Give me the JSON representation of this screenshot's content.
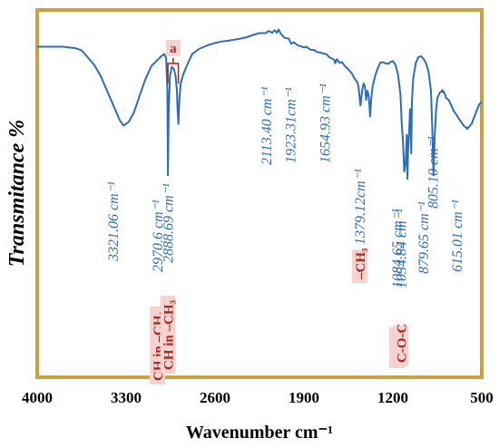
{
  "chart_data": {
    "type": "line",
    "title": "",
    "xlabel": "Wavenumber cm⁻¹",
    "ylabel": "Transmitance %",
    "xlim": [
      4000,
      500
    ],
    "ylim": [
      0,
      100
    ],
    "x_reversed": true,
    "grid": false,
    "legend": "none",
    "x_ticks": [
      "4000",
      "3300",
      "2600",
      "1900",
      "1200",
      "500"
    ],
    "colors": {
      "line": "#2e6db4",
      "frame": "#c8a23c",
      "group_text": "#a52a1a",
      "group_box": "#f6d3d0"
    },
    "series": [
      {
        "x": [
          4000,
          3900,
          3800,
          3700,
          3650,
          3600,
          3550,
          3500,
          3450,
          3400,
          3350,
          3321,
          3280,
          3240,
          3200,
          3150,
          3100,
          3050,
          3020,
          3000,
          2985,
          2975,
          2970.6,
          2965,
          2955,
          2940,
          2925,
          2910,
          2900,
          2895,
          2888.7,
          2880,
          2870,
          2850,
          2820,
          2780,
          2720,
          2650,
          2600,
          2550,
          2500,
          2450,
          2400,
          2350,
          2300,
          2250,
          2200,
          2180,
          2150,
          2130,
          2113,
          2100,
          2080,
          2050,
          2020,
          2000,
          1980,
          1950,
          1923,
          1900,
          1880,
          1850,
          1820,
          1800,
          1770,
          1740,
          1720,
          1700,
          1680,
          1660,
          1655,
          1640,
          1620,
          1600,
          1580,
          1560,
          1540,
          1520,
          1500,
          1480,
          1470,
          1455,
          1440,
          1430,
          1420,
          1410,
          1400,
          1390,
          1385,
          1379,
          1370,
          1360,
          1340,
          1320,
          1300,
          1280,
          1260,
          1240,
          1220,
          1200,
          1180,
          1160,
          1140,
          1130,
          1120,
          1110,
          1100,
          1090,
          1085,
          1080,
          1070,
          1065,
          1060,
          1055,
          1050,
          1040,
          1020,
          1000,
          980,
          960,
          940,
          920,
          900,
          890,
          880,
          870,
          860,
          850,
          840,
          830,
          820,
          810,
          805,
          800,
          790,
          780,
          760,
          740,
          720,
          700,
          680,
          660,
          640,
          620,
          615,
          600,
          580,
          560,
          540,
          520,
          500
        ],
        "y": [
          90,
          90,
          90,
          89.6,
          89,
          87,
          85,
          82,
          78,
          74,
          70,
          68.5,
          69.5,
          72,
          76,
          81,
          84.8,
          86.5,
          87.5,
          88,
          87,
          78,
          55,
          72,
          82,
          84.5,
          84,
          82,
          78,
          73,
          69,
          76,
          80,
          82.5,
          85,
          88,
          89.5,
          90.5,
          91,
          91.4,
          91.6,
          91.9,
          92.2,
          92.6,
          93.2,
          93.7,
          93.7,
          94.3,
          93.8,
          94.5,
          93.8,
          94.7,
          93.4,
          92.4,
          92.2,
          90.8,
          91.2,
          90.4,
          90.1,
          89.8,
          90,
          89.2,
          89.1,
          88.6,
          88.4,
          88.1,
          87.9,
          87.1,
          86.8,
          86.4,
          85.5,
          86.6,
          85.6,
          85.8,
          84.8,
          84.2,
          83.4,
          82.6,
          81.2,
          80.4,
          79,
          74,
          78.5,
          80,
          79.2,
          75.5,
          78,
          76.5,
          74.5,
          71,
          76,
          79,
          82,
          84,
          85.6,
          85.8,
          85.5,
          85.3,
          85.8,
          86.1,
          85.1,
          82.6,
          77,
          69,
          64,
          56,
          58,
          66,
          54,
          62,
          68,
          73,
          70,
          61,
          75,
          81.2,
          85.5,
          87.1,
          87.4,
          86.8,
          85.6,
          83.4,
          78,
          68,
          55,
          66,
          72.5,
          76,
          76.8,
          77.5,
          77.7,
          78.2,
          77.6,
          77.8,
          77,
          76,
          75.5,
          74,
          72.5,
          71.5,
          70.4,
          69.4,
          68.4,
          68,
          67.6,
          68.2,
          69,
          70.8,
          72.6,
          74.3,
          75
        ]
      }
    ],
    "annotations": [
      {
        "x": 3321.06,
        "text": "3321.06 cm⁻¹"
      },
      {
        "x": 2970.6,
        "text": "2970.6 cm⁻¹",
        "group": "CH in –CH₂"
      },
      {
        "x": 2888.69,
        "text": "2888.69 cm⁻¹",
        "group": "CH in –CH₃"
      },
      {
        "x": 2113.4,
        "text": "2113.40 cm⁻¹"
      },
      {
        "x": 1923.31,
        "text": "1923.31cm⁻¹"
      },
      {
        "x": 1654.93,
        "text": "1654.93 cm⁻¹"
      },
      {
        "x": 1379.12,
        "text": "1379.12cm⁻¹",
        "group": "–CH₃"
      },
      {
        "x": 1084.65,
        "text": "1084.65 cm⁻¹",
        "group": "C-O-C"
      },
      {
        "x": 1054.84,
        "text": "1054.84 cm⁻¹",
        "group": "C-O-C"
      },
      {
        "x": 879.65,
        "text": "879.65 cm⁻¹"
      },
      {
        "x": 805.1,
        "text": "805.10 cm⁻¹"
      },
      {
        "x": 615.01,
        "text": "615.01 cm⁻¹"
      }
    ],
    "bracket": {
      "x_range": [
        2970.6,
        2888.69
      ],
      "text": "a"
    }
  }
}
